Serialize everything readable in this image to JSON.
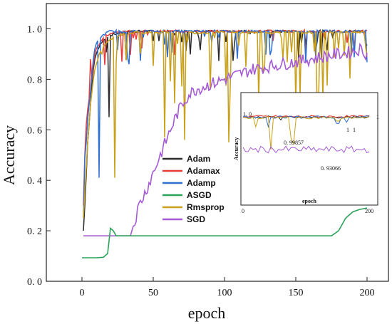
{
  "chart_data": [
    {
      "type": "line",
      "title": "",
      "xlabel": "epoch",
      "ylabel": "Accuracy",
      "xlim": [
        -25,
        215
      ],
      "ylim": [
        0.0,
        1.1
      ],
      "xticks": [
        0,
        50,
        100,
        150,
        200
      ],
      "yticks": [
        0.0,
        0.2,
        0.4,
        0.6,
        0.8,
        1.0
      ],
      "xtick_labels": [
        "0",
        "50",
        "100",
        "150",
        "200"
      ],
      "ytick_labels": [
        "0. 0",
        "0. 2",
        "0. 4",
        "0. 6",
        "0. 8",
        "1. 0"
      ],
      "legend_position": "center-left",
      "series": [
        {
          "name": "Adam",
          "color": "#2b2b2b",
          "x": [
            1,
            2,
            3,
            4,
            5,
            6,
            7,
            8,
            9,
            10,
            12,
            14,
            16,
            18,
            20,
            24,
            28,
            32,
            36,
            40,
            50,
            60,
            70,
            80,
            100,
            120,
            140,
            160,
            180,
            200
          ],
          "y": [
            0.2,
            0.3,
            0.42,
            0.55,
            0.62,
            0.7,
            0.78,
            0.84,
            0.88,
            0.9,
            0.93,
            0.95,
            0.96,
            0.97,
            0.975,
            0.98,
            0.985,
            0.99,
            0.99,
            0.99,
            0.99,
            0.99,
            0.99,
            0.99,
            0.99,
            0.99,
            0.99,
            0.99,
            0.99,
            0.99
          ]
        },
        {
          "name": "Adamax",
          "color": "#e83a3a",
          "x": [
            1,
            2,
            3,
            4,
            5,
            6,
            7,
            8,
            9,
            10,
            12,
            14,
            16,
            18,
            20,
            24,
            28,
            32,
            36,
            40,
            50,
            60,
            70,
            80,
            100,
            120,
            140,
            160,
            180,
            200
          ],
          "y": [
            0.3,
            0.5,
            0.62,
            0.68,
            0.72,
            0.88,
            0.8,
            0.86,
            0.9,
            0.92,
            0.94,
            0.96,
            0.97,
            0.975,
            0.98,
            0.985,
            0.99,
            0.99,
            0.99,
            0.99,
            0.99,
            0.99,
            0.99,
            0.99,
            0.99,
            0.99,
            0.99,
            0.99,
            0.99,
            0.99
          ]
        },
        {
          "name": "Adamp",
          "color": "#2f6fd0",
          "x": [
            1,
            2,
            3,
            4,
            5,
            6,
            7,
            8,
            9,
            10,
            12,
            14,
            16,
            18,
            20,
            24,
            28,
            32,
            36,
            40,
            50,
            60,
            70,
            80,
            100,
            120,
            140,
            160,
            180,
            200
          ],
          "y": [
            0.25,
            0.49,
            0.55,
            0.64,
            0.7,
            0.75,
            0.82,
            0.88,
            0.92,
            0.94,
            0.96,
            0.97,
            0.98,
            0.985,
            0.99,
            0.99,
            0.99,
            0.99,
            0.99,
            0.99,
            0.99,
            0.99,
            0.99,
            0.99,
            0.99,
            0.99,
            0.99,
            0.99,
            0.99,
            0.99
          ]
        },
        {
          "name": "ASGD",
          "color": "#2aa35a",
          "x": [
            0,
            5,
            10,
            15,
            18,
            20,
            22,
            24,
            30,
            40,
            60,
            80,
            100,
            120,
            140,
            160,
            175,
            180,
            185,
            190,
            195,
            200
          ],
          "y": [
            0.093,
            0.093,
            0.093,
            0.095,
            0.11,
            0.21,
            0.2,
            0.18,
            0.18,
            0.18,
            0.18,
            0.18,
            0.18,
            0.18,
            0.18,
            0.18,
            0.18,
            0.2,
            0.25,
            0.275,
            0.285,
            0.29
          ]
        },
        {
          "name": "Rmsprop",
          "color": "#c9a01a",
          "x": [
            1,
            2,
            3,
            4,
            5,
            6,
            7,
            8,
            9,
            10,
            12,
            14,
            16,
            18,
            20,
            24,
            28,
            32,
            36,
            40,
            50,
            60,
            70,
            80,
            100,
            120,
            140,
            160,
            180,
            200
          ],
          "y": [
            0.25,
            0.35,
            0.45,
            0.55,
            0.62,
            0.7,
            0.75,
            0.8,
            0.84,
            0.86,
            0.9,
            0.92,
            0.94,
            0.95,
            0.96,
            0.97,
            0.975,
            0.98,
            0.985,
            0.985,
            0.985,
            0.985,
            0.985,
            0.985,
            0.985,
            0.985,
            0.985,
            0.985,
            0.985,
            0.985
          ]
        },
        {
          "name": "SGD",
          "color": "#a55bd6",
          "x": [
            0,
            1,
            2,
            10,
            20,
            30,
            34,
            36,
            40,
            45,
            50,
            55,
            60,
            65,
            70,
            75,
            80,
            90,
            100,
            110,
            120,
            130,
            140,
            150,
            160,
            170,
            180,
            190,
            195,
            200
          ],
          "y": [
            0.095,
            0.18,
            0.18,
            0.18,
            0.18,
            0.18,
            0.18,
            0.22,
            0.3,
            0.36,
            0.43,
            0.5,
            0.57,
            0.64,
            0.7,
            0.74,
            0.76,
            0.78,
            0.8,
            0.82,
            0.84,
            0.85,
            0.86,
            0.87,
            0.88,
            0.89,
            0.9,
            0.91,
            0.92,
            0.9
          ]
        }
      ]
    },
    {
      "type": "line",
      "title": "",
      "xlabel": "epoch",
      "ylabel": "Accuracy",
      "xticks": [
        0,
        200
      ],
      "ytick_labels": [
        "1. 0"
      ],
      "annotations": [
        "0. 99857",
        "0. 93066",
        "1",
        "1",
        "1"
      ]
    }
  ]
}
